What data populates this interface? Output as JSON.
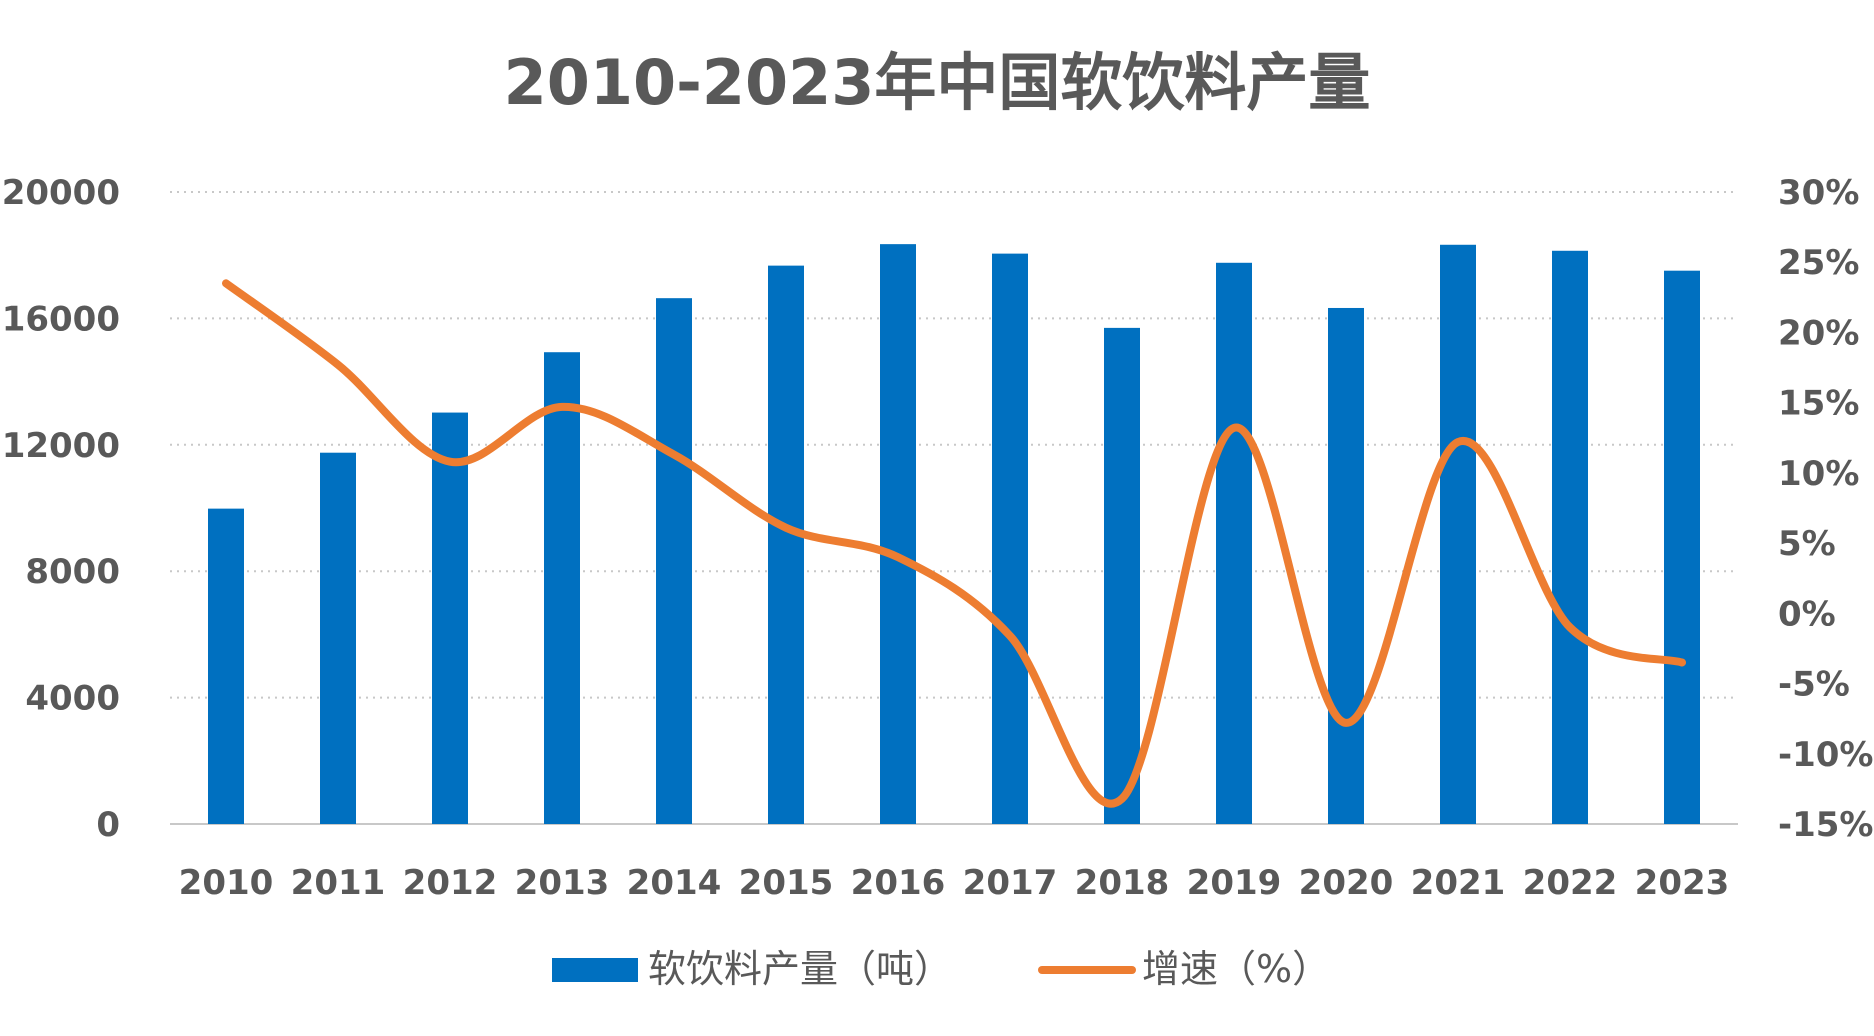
{
  "chart_data": {
    "type": "bar",
    "title": "2010-2023年中国软饮料产量",
    "categories": [
      "2010",
      "2011",
      "2012",
      "2013",
      "2014",
      "2015",
      "2016",
      "2017",
      "2018",
      "2019",
      "2020",
      "2021",
      "2022",
      "2023"
    ],
    "series": [
      {
        "name": "软饮料产量（吨）",
        "type": "bar",
        "axis": "left",
        "values": [
          9980,
          11750,
          13020,
          14930,
          16640,
          17670,
          18350,
          18050,
          15700,
          17760,
          16330,
          18330,
          18140,
          17510
        ]
      },
      {
        "name": "增速（%）",
        "type": "line",
        "axis": "right",
        "values": [
          23.5,
          17.7,
          10.8,
          14.7,
          11.3,
          6.1,
          4.0,
          -1.6,
          -13.2,
          13.2,
          -7.8,
          12.2,
          -1.0,
          -3.5
        ]
      }
    ],
    "y_left": {
      "min": 0,
      "max": 20000,
      "ticks": [
        0,
        4000,
        8000,
        12000,
        16000,
        20000
      ]
    },
    "y_right": {
      "min": -15,
      "max": 30,
      "ticks": [
        -15,
        -10,
        -5,
        0,
        5,
        10,
        15,
        20,
        25,
        30
      ]
    },
    "grid": true,
    "legend_position": "bottom",
    "colors": {
      "bar": "#0070c0",
      "line": "#ed7d31",
      "text": "#595959",
      "grid": "#c8c8c8"
    }
  }
}
